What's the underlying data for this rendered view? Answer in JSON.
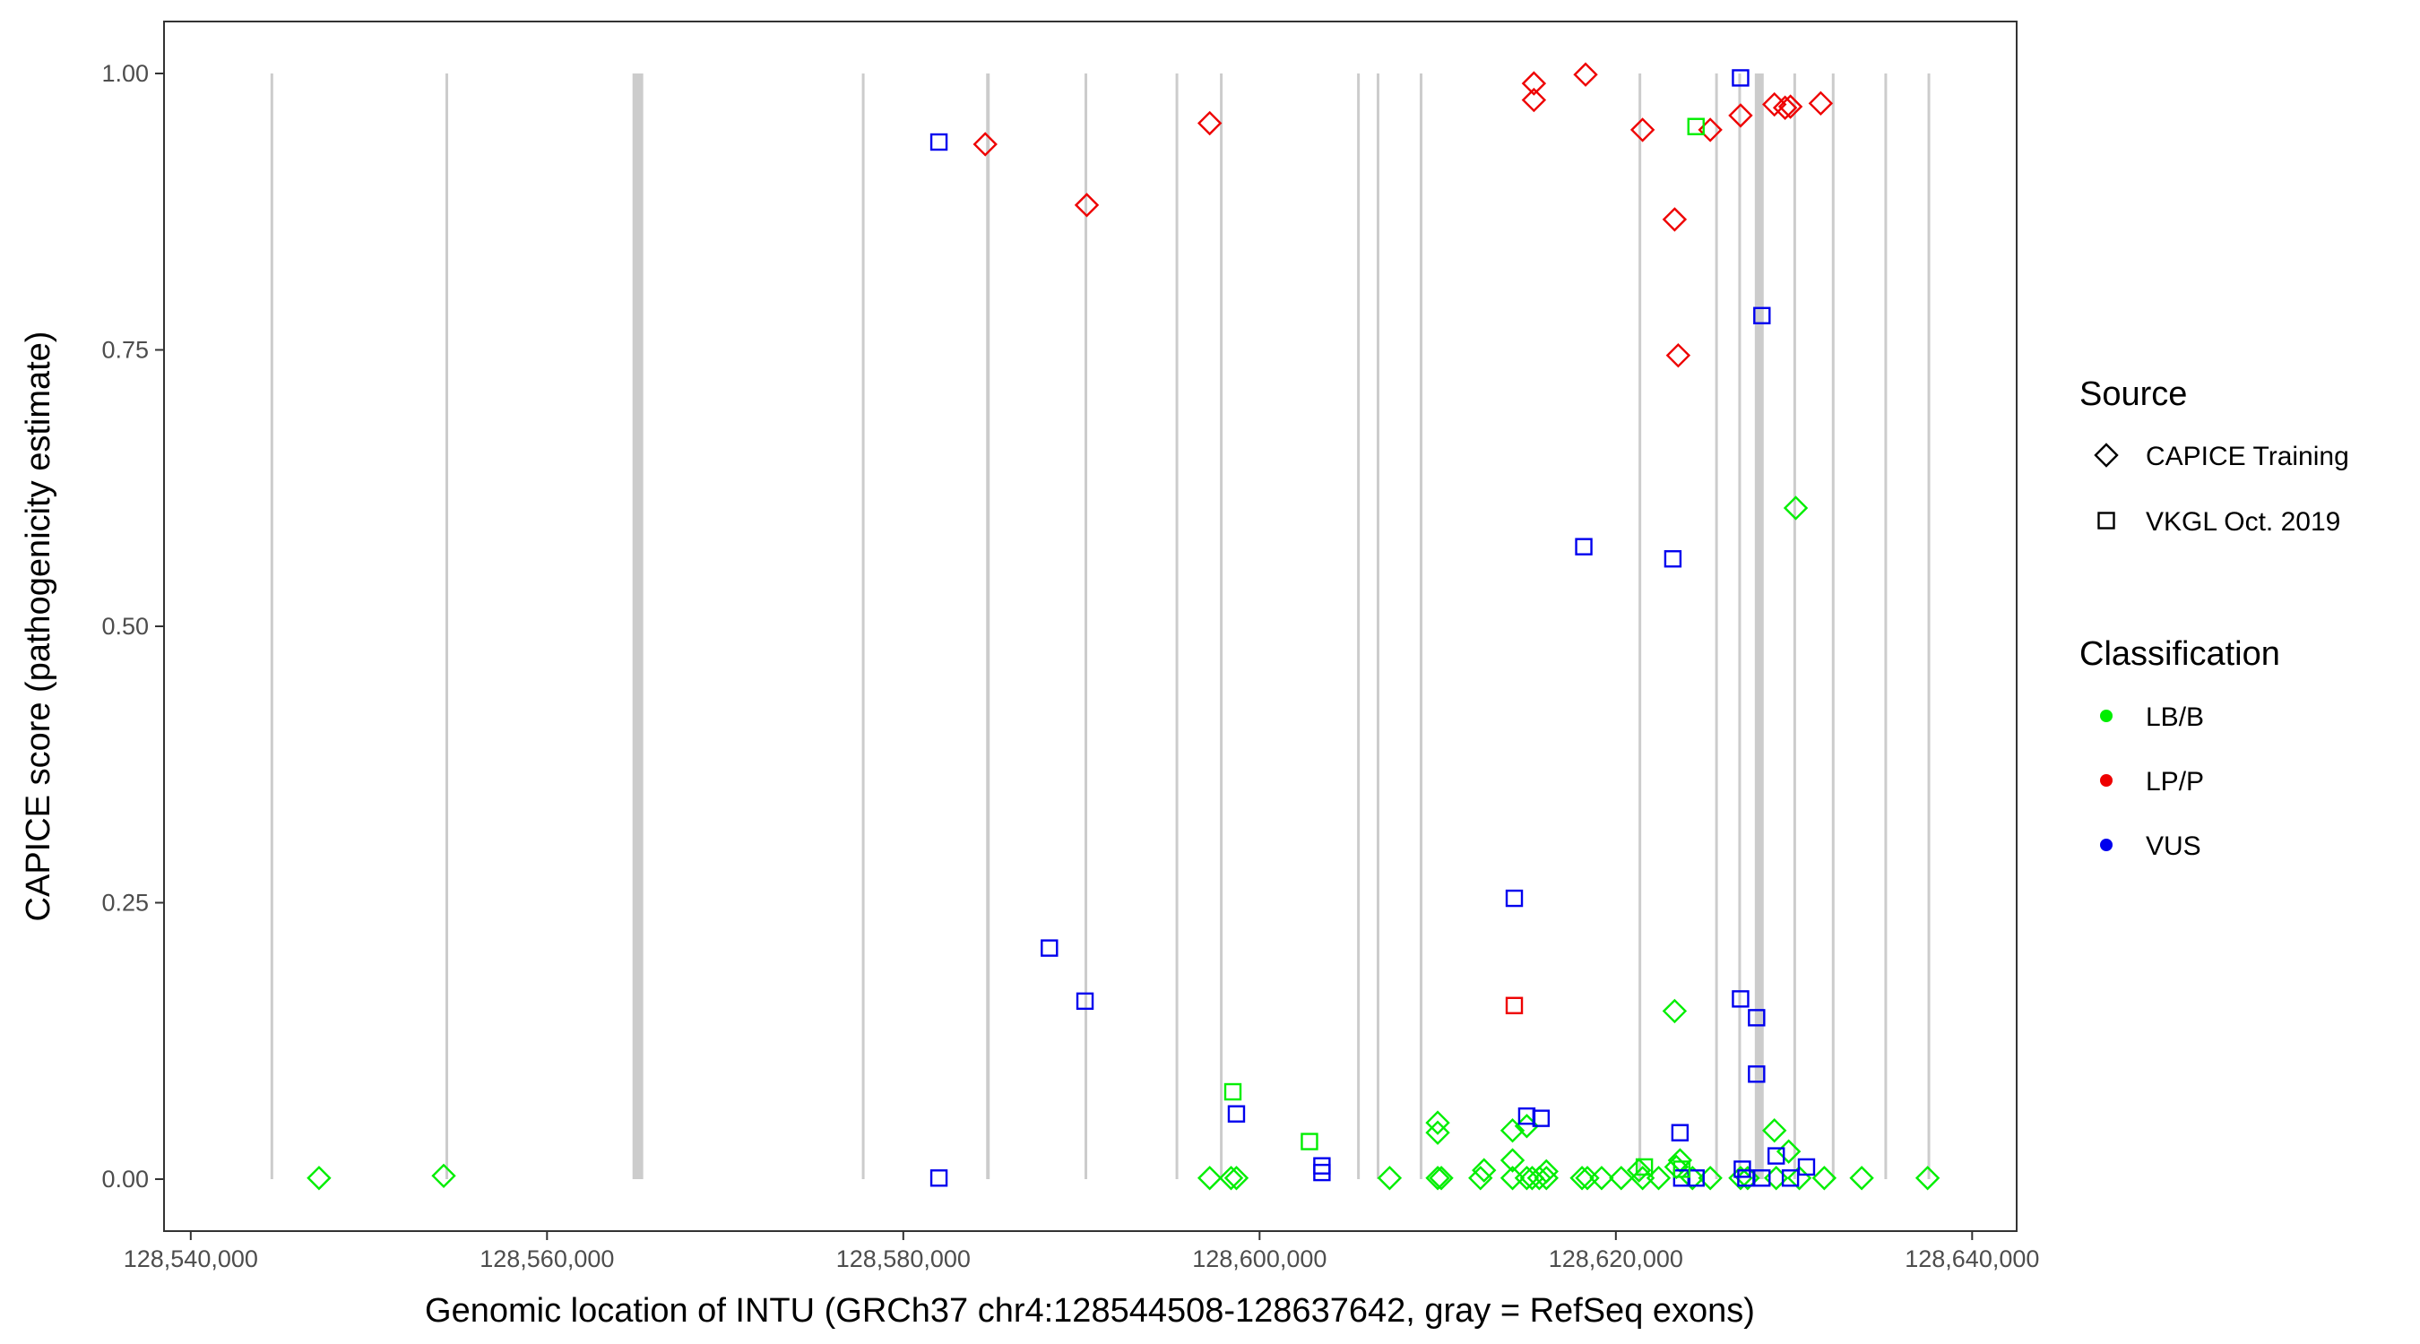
{
  "chart_data": {
    "type": "scatter",
    "xlabel": "Genomic location of INTU (GRCh37 chr4:128544508-128637642, gray = RefSeq exons)",
    "ylabel": "CAPICE score (pathogenicity estimate)",
    "xlim": [
      128538500,
      128642500
    ],
    "ylim": [
      -0.047,
      1.047
    ],
    "xticks": [
      128540000,
      128560000,
      128580000,
      128600000,
      128620000,
      128640000
    ],
    "xtick_labels": [
      "128,540,000",
      "128,560,000",
      "128,580,000",
      "128,600,000",
      "128,620,000",
      "128,640,000"
    ],
    "yticks": [
      0,
      0.25,
      0.5,
      0.75,
      1
    ],
    "ytick_labels": [
      "0.00",
      "0.25",
      "0.50",
      "0.75",
      "1.00"
    ],
    "exons": [
      {
        "start": 128544508,
        "end": 128544600
      },
      {
        "start": 128554300,
        "end": 128554450
      },
      {
        "start": 128564800,
        "end": 128565400
      },
      {
        "start": 128577700,
        "end": 128577800
      },
      {
        "start": 128584650,
        "end": 128584850
      },
      {
        "start": 128590200,
        "end": 128590300
      },
      {
        "start": 128595300,
        "end": 128595420
      },
      {
        "start": 128597800,
        "end": 128597900
      },
      {
        "start": 128605500,
        "end": 128605600
      },
      {
        "start": 128606600,
        "end": 128606700
      },
      {
        "start": 128609000,
        "end": 128609130
      },
      {
        "start": 128621300,
        "end": 128621400
      },
      {
        "start": 128625600,
        "end": 128625700
      },
      {
        "start": 128626900,
        "end": 128627000
      },
      {
        "start": 128627800,
        "end": 128628300
      },
      {
        "start": 128630000,
        "end": 128630080
      },
      {
        "start": 128632150,
        "end": 128632250
      },
      {
        "start": 128635100,
        "end": 128635200
      },
      {
        "start": 128637500,
        "end": 128637642
      }
    ],
    "series": [
      {
        "source": "CAPICE Training",
        "classification": "LP/P",
        "points": [
          [
            128584600,
            0.936
          ],
          [
            128590300,
            0.881
          ],
          [
            128597200,
            0.955
          ],
          [
            128615400,
            0.991
          ],
          [
            128615400,
            0.976
          ],
          [
            128618300,
            0.999
          ],
          [
            128621500,
            0.949
          ],
          [
            128623300,
            0.868
          ],
          [
            128623500,
            0.745
          ],
          [
            128625300,
            0.949
          ],
          [
            128627000,
            0.962
          ],
          [
            128628900,
            0.972
          ],
          [
            128629500,
            0.969
          ],
          [
            128629800,
            0.97
          ],
          [
            128631500,
            0.973
          ]
        ]
      },
      {
        "source": "CAPICE Training",
        "classification": "LB/B",
        "points": [
          [
            128547200,
            0.001
          ],
          [
            128554200,
            0.003
          ],
          [
            128597200,
            0.001
          ],
          [
            128598400,
            0.001
          ],
          [
            128598700,
            0.001
          ],
          [
            128607300,
            0.001
          ],
          [
            128610000,
            0.051
          ],
          [
            128610000,
            0.042
          ],
          [
            128610000,
            0.001
          ],
          [
            128610200,
            0.001
          ],
          [
            128612400,
            0.001
          ],
          [
            128612600,
            0.008
          ],
          [
            128614200,
            0.044
          ],
          [
            128614200,
            0.017
          ],
          [
            128614200,
            0.001
          ],
          [
            128615000,
            0.048
          ],
          [
            128615000,
            0.001
          ],
          [
            128615300,
            0.001
          ],
          [
            128615700,
            0.001
          ],
          [
            128616100,
            0.007
          ],
          [
            128616100,
            0.001
          ],
          [
            128618100,
            0.001
          ],
          [
            128618400,
            0.001
          ],
          [
            128619200,
            0.001
          ],
          [
            128620300,
            0.001
          ],
          [
            128621300,
            0.008
          ],
          [
            128621500,
            0.001
          ],
          [
            128622400,
            0.001
          ],
          [
            128623300,
            0.152
          ],
          [
            128623400,
            0.011
          ],
          [
            128623600,
            0.017
          ],
          [
            128624300,
            0.001
          ],
          [
            128625300,
            0.001
          ],
          [
            128627000,
            0.001
          ],
          [
            128627400,
            0.001
          ],
          [
            128628900,
            0.044
          ],
          [
            128629000,
            0.001
          ],
          [
            128629700,
            0.025
          ],
          [
            128630100,
            0.607
          ],
          [
            128630300,
            0.001
          ],
          [
            128631700,
            0.001
          ],
          [
            128633800,
            0.001
          ],
          [
            128637500,
            0.001
          ]
        ]
      },
      {
        "source": "VKGL Oct. 2019",
        "classification": "VUS",
        "points": [
          [
            128582000,
            0.938
          ],
          [
            128582000,
            0.001
          ],
          [
            128588200,
            0.209
          ],
          [
            128590200,
            0.161
          ],
          [
            128598700,
            0.059
          ],
          [
            128603500,
            0.012
          ],
          [
            128603500,
            0.006
          ],
          [
            128614300,
            0.254
          ],
          [
            128615000,
            0.057
          ],
          [
            128615800,
            0.055
          ],
          [
            128618200,
            0.572
          ],
          [
            128623200,
            0.561
          ],
          [
            128623600,
            0.042
          ],
          [
            128623700,
            0.001
          ],
          [
            128624500,
            0.001
          ],
          [
            128627000,
            0.996
          ],
          [
            128627000,
            0.163
          ],
          [
            128627100,
            0.009
          ],
          [
            128627300,
            0.001
          ],
          [
            128627900,
            0.146
          ],
          [
            128627900,
            0.095
          ],
          [
            128628200,
            0.781
          ],
          [
            128628200,
            0.001
          ],
          [
            128629000,
            0.021
          ],
          [
            128629800,
            0.001
          ],
          [
            128630700,
            0.011
          ]
        ]
      },
      {
        "source": "VKGL Oct. 2019",
        "classification": "LB/B",
        "points": [
          [
            128598500,
            0.079
          ],
          [
            128602800,
            0.034
          ],
          [
            128621600,
            0.011
          ],
          [
            128623700,
            0.009
          ],
          [
            128624500,
            0.952
          ]
        ]
      },
      {
        "source": "VKGL Oct. 2019",
        "classification": "LP/P",
        "points": [
          [
            128614300,
            0.157
          ]
        ]
      }
    ],
    "legend": {
      "source_title": "Source",
      "source_entries": [
        {
          "label": "CAPICE Training",
          "shape": "diamond"
        },
        {
          "label": "VKGL Oct. 2019",
          "shape": "square"
        }
      ],
      "class_title": "Classification",
      "class_entries": [
        {
          "label": "LB/B",
          "color": "#00ee00"
        },
        {
          "label": "LP/P",
          "color": "#ee0000"
        },
        {
          "label": "VUS",
          "color": "#0000ee"
        }
      ],
      "placement": "right"
    },
    "colors": {
      "LB/B": "#00ee00",
      "LP/P": "#ee0000",
      "VUS": "#0000ee",
      "exon": "#cccccc",
      "panel_border": "#333333"
    }
  }
}
